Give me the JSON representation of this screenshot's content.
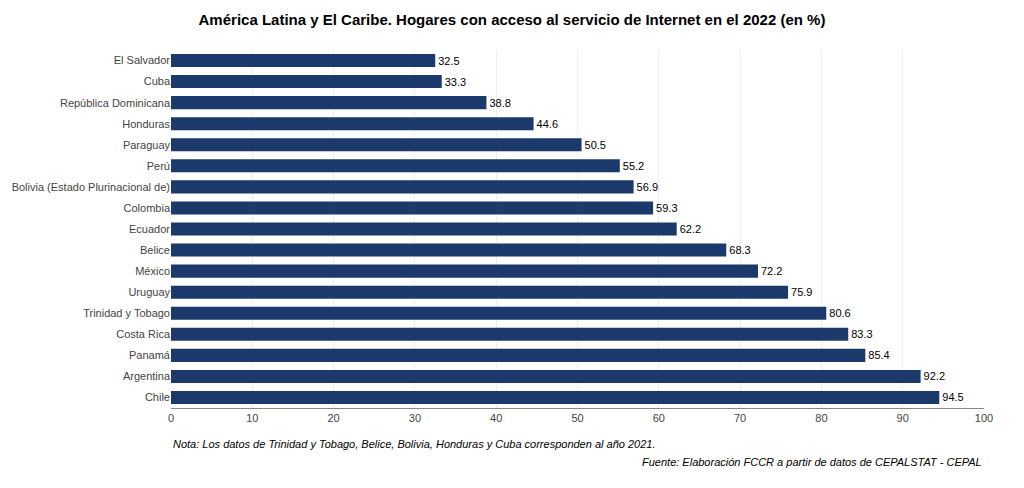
{
  "chart_data": {
    "type": "bar",
    "orientation": "horizontal",
    "title": "América Latina y El Caribe. Hogares con acceso al servicio de Internet en el 2022 (en %)",
    "categories": [
      "Chile",
      "Argentina",
      "Panamá",
      "Costa Rica",
      "Trinidad y Tobago",
      "Uruguay",
      "México",
      "Belice",
      "Ecuador",
      "Colombia",
      "Bolivia (Estado Plurinacional de)",
      "Perú",
      "Paraguay",
      "Honduras",
      "República Dominicana",
      "Cuba",
      "El Salvador"
    ],
    "values": [
      94.5,
      92.2,
      85.4,
      83.3,
      80.6,
      75.9,
      72.2,
      68.3,
      62.2,
      59.3,
      56.9,
      55.2,
      50.5,
      44.6,
      38.8,
      33.3,
      32.5
    ],
    "color": "#1b3a6b",
    "xlim": [
      0,
      100
    ],
    "xticks": [
      0,
      10,
      20,
      30,
      40,
      50,
      60,
      70,
      80,
      90,
      100
    ],
    "grid": true,
    "data_labels": true,
    "annotations": [
      "Nota: Los datos de Trinidad y Tobago, Belice, Bolivia, Honduras y Cuba corresponden al año 2021.",
      "Fuente: Elaboración FCCR a partir de datos de CEPALSTAT - CEPAL"
    ]
  }
}
